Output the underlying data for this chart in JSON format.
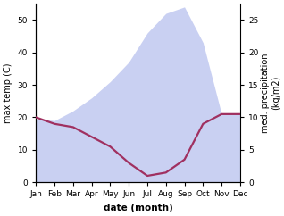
{
  "months": [
    "Jan",
    "Feb",
    "Mar",
    "Apr",
    "May",
    "Jun",
    "Jul",
    "Aug",
    "Sep",
    "Oct",
    "Nov",
    "Dec"
  ],
  "month_indices": [
    1,
    2,
    3,
    4,
    5,
    6,
    7,
    8,
    9,
    10,
    11,
    12
  ],
  "temp_max": [
    19.5,
    19,
    22,
    26,
    31,
    37,
    46,
    52,
    54,
    43,
    21,
    21
  ],
  "precip": [
    10,
    9,
    8.5,
    7,
    5.5,
    3,
    1,
    1.5,
    3.5,
    9,
    10.5,
    10.5
  ],
  "temp_ylim": [
    0,
    55
  ],
  "temp_yticks": [
    0,
    10,
    20,
    30,
    40,
    50
  ],
  "precip_ylim": [
    0,
    27.5
  ],
  "precip_yticks": [
    0,
    5,
    10,
    15,
    20,
    25
  ],
  "fill_color": "#c0c8f0",
  "fill_alpha": 0.85,
  "line_color": "#a03060",
  "line_width": 1.6,
  "xlabel": "date (month)",
  "ylabel_left": "max temp (C)",
  "ylabel_right": "med. precipitation\n(kg/m2)",
  "bg_color": "#ffffff",
  "xlabel_fontsize": 7.5,
  "ylabel_fontsize": 7,
  "tick_fontsize": 6.5
}
